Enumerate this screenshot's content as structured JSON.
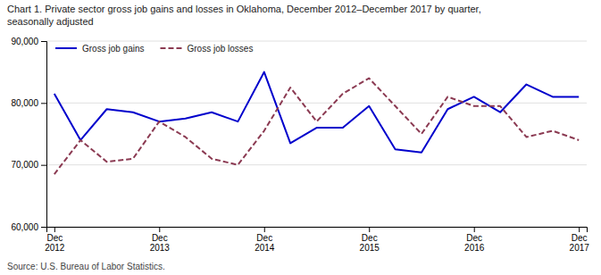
{
  "chart_data": {
    "type": "line",
    "title": "Chart 1. Private sector gross job gains and losses in Oklahoma, December 2012–December 2017 by quarter,\nseasonally adjusted",
    "source": "Source: U.S. Bureau of Labor Statistics.",
    "categories": [
      "Dec\n2012",
      null,
      null,
      null,
      "Dec\n2013",
      null,
      null,
      null,
      "Dec\n2014",
      null,
      null,
      null,
      "Dec\n2015",
      null,
      null,
      null,
      "Dec\n2016",
      null,
      null,
      null,
      "Dec\n2017"
    ],
    "series": [
      {
        "name": "Gross job gains",
        "color": "#0000cc",
        "line_style": "solid",
        "values": [
          81500,
          74000,
          79000,
          78500,
          77000,
          77500,
          78500,
          77000,
          85000,
          73500,
          76000,
          76000,
          79500,
          72500,
          72000,
          79000,
          81000,
          78500,
          83000,
          81000,
          81000
        ]
      },
      {
        "name": "Gross job losses",
        "color": "#8B3A52",
        "line_style": "dashed",
        "values": [
          68500,
          74000,
          70500,
          71000,
          77000,
          74500,
          71000,
          70000,
          75500,
          82500,
          77000,
          81500,
          84000,
          79500,
          75000,
          81000,
          79500,
          79500,
          74500,
          75500,
          74000
        ]
      }
    ],
    "ylim": [
      60000,
      90000
    ],
    "yticks": [
      {
        "value": 60000,
        "label": "60,000"
      },
      {
        "value": 70000,
        "label": "70,000"
      },
      {
        "value": 80000,
        "label": "80,000"
      },
      {
        "value": 90000,
        "label": "90,000"
      }
    ],
    "grid": true,
    "legend": "upper left"
  }
}
